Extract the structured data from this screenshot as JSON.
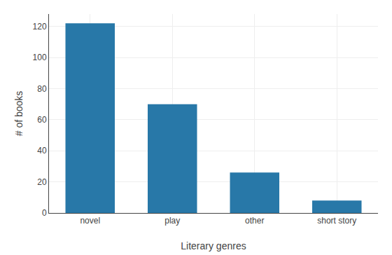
{
  "chart_data": {
    "type": "bar",
    "xlabel": "Literary genres",
    "ylabel": "# of books",
    "categories": [
      "novel",
      "play",
      "other",
      "short story"
    ],
    "values": [
      122,
      70,
      26,
      8
    ],
    "color": "#2878a8",
    "ylim": [
      0,
      128
    ],
    "yticks": [
      0,
      20,
      40,
      60,
      80,
      100,
      120
    ],
    "grid": true
  }
}
